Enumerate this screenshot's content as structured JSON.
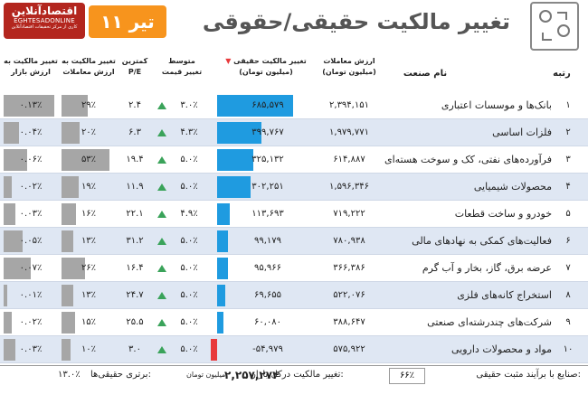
{
  "header": {
    "brand_title": "اقتصادآنلاین",
    "brand_subtitle": "EGHTESADONLINE",
    "brand_tagline": "کاری از مرکز تحقیقات اقتصادآنلاین",
    "date": "۱۱ تیر",
    "title": "تغییر مالکیت حقیقی/حقوقی"
  },
  "columns": {
    "rank": "رتبه",
    "industry": "نام صنعت",
    "trade_value": "ارزش معاملات",
    "trade_value_unit": "(میلیون تومان)",
    "ownership_change": "تغییر مالکیت حقیقی",
    "ownership_change_unit": "(میلیون تومان)",
    "avg_price_change_1": "متوسط",
    "avg_price_change_2": "تغییر قیمت",
    "pe_1": "کمترین",
    "pe_2": "P/E",
    "own_to_trade_1": "تغییر مالکیت به",
    "own_to_trade_2": "ارزش معاملات",
    "own_to_market_1": "تغییر مالکیت به",
    "own_to_market_2": "ارزش بازار"
  },
  "colors": {
    "blue_bar": "#1f9be0",
    "red_bar": "#e8393b",
    "gray_bar": "#a6a6a6",
    "up_arrow": "#3aa35a",
    "row_alt": "#dfe7f3"
  },
  "chart_data": {
    "type": "table",
    "rows": [
      {
        "rank": "۱",
        "industry": "بانک‌ها و موسسات اعتباری",
        "trade_value": "۲,۳۹۴,۱۵۱",
        "ownership_change": "۶۸۵,۵۷۹",
        "ownership_value": 685579,
        "avg_price_change": "۳.۰٪",
        "pe": "۲.۴",
        "own_to_trade": "۲۹٪",
        "own_to_trade_value": 29,
        "own_to_market": "۰.۱۳٪",
        "own_to_market_value": 0.13
      },
      {
        "rank": "۲",
        "industry": "فلزات اساسی",
        "trade_value": "۱,۹۷۹,۷۷۱",
        "ownership_change": "۳۹۹,۷۶۷",
        "ownership_value": 399767,
        "avg_price_change": "۴.۳٪",
        "pe": "۶.۳",
        "own_to_trade": "۲۰٪",
        "own_to_trade_value": 20,
        "own_to_market": "۰.۰۴٪",
        "own_to_market_value": 0.04
      },
      {
        "rank": "۳",
        "industry": "فرآورده‌های نفتی، کک و سوخت هسته‌ای",
        "trade_value": "۶۱۴,۸۸۷",
        "ownership_change": "۳۲۵,۱۳۲",
        "ownership_value": 325132,
        "avg_price_change": "۵.۰٪",
        "pe": "۱۹.۴",
        "own_to_trade": "۵۳٪",
        "own_to_trade_value": 53,
        "own_to_market": "۰.۰۶٪",
        "own_to_market_value": 0.06
      },
      {
        "rank": "۴",
        "industry": "محصولات شیمیایی",
        "trade_value": "۱,۵۹۶,۳۴۶",
        "ownership_change": "۳۰۲,۲۵۱",
        "ownership_value": 302251,
        "avg_price_change": "۵.۰٪",
        "pe": "۱۱.۹",
        "own_to_trade": "۱۹٪",
        "own_to_trade_value": 19,
        "own_to_market": "۰.۰۲٪",
        "own_to_market_value": 0.02
      },
      {
        "rank": "۵",
        "industry": "خودرو و ساخت قطعات",
        "trade_value": "۷۱۹,۲۲۲",
        "ownership_change": "۱۱۳,۶۹۳",
        "ownership_value": 113693,
        "avg_price_change": "۴.۹٪",
        "pe": "۲۲.۱",
        "own_to_trade": "۱۶٪",
        "own_to_trade_value": 16,
        "own_to_market": "۰.۰۳٪",
        "own_to_market_value": 0.03
      },
      {
        "rank": "۶",
        "industry": "فعالیت‌های کمکی به نهادهای مالی",
        "trade_value": "۷۸۰,۹۳۸",
        "ownership_change": "۹۹,۱۷۹",
        "ownership_value": 99179,
        "avg_price_change": "۵.۰٪",
        "pe": "۳۱.۲",
        "own_to_trade": "۱۳٪",
        "own_to_trade_value": 13,
        "own_to_market": "۰.۰۵٪",
        "own_to_market_value": 0.05
      },
      {
        "rank": "۷",
        "industry": "عرضه برق، گاز، بخار و آب گرم",
        "trade_value": "۳۶۶,۳۸۶",
        "ownership_change": "۹۵,۹۶۶",
        "ownership_value": 95966,
        "avg_price_change": "۵.۰٪",
        "pe": "۱۶.۴",
        "own_to_trade": "۲۶٪",
        "own_to_trade_value": 26,
        "own_to_market": "۰.۰۷٪",
        "own_to_market_value": 0.07
      },
      {
        "rank": "۸",
        "industry": "استخراج کانه‌های فلزی",
        "trade_value": "۵۲۲,۰۷۶",
        "ownership_change": "۶۹,۶۵۵",
        "ownership_value": 69655,
        "avg_price_change": "۵.۰٪",
        "pe": "۲۴.۷",
        "own_to_trade": "۱۳٪",
        "own_to_trade_value": 13,
        "own_to_market": "۰.۰۱٪",
        "own_to_market_value": 0.01
      },
      {
        "rank": "۹",
        "industry": "شرکت‌های چندرشته‌ای صنعتی",
        "trade_value": "۳۸۸,۶۴۷",
        "ownership_change": "۶۰,۰۸۰",
        "ownership_value": 60080,
        "avg_price_change": "۵.۰٪",
        "pe": "۲۵.۵",
        "own_to_trade": "۱۵٪",
        "own_to_trade_value": 15,
        "own_to_market": "۰.۰۲٪",
        "own_to_market_value": 0.02
      },
      {
        "rank": "۱۰",
        "industry": "مواد و محصولات دارویی",
        "trade_value": "۵۷۵,۹۲۲",
        "ownership_change": "-۵۴,۹۷۹",
        "ownership_value": -54979,
        "avg_price_change": "۵.۰٪",
        "pe": "۳.۰",
        "own_to_trade": "۱۰٪",
        "own_to_trade_value": 10,
        "own_to_market": "۰.۰۳٪",
        "own_to_market_value": 0.03
      }
    ]
  },
  "footer": {
    "positive_label": "صنایع با برآیند مثبت حقیقی:",
    "positive_value": "۶۶٪",
    "total_label": "تغییر مالکیت درکل بازار:",
    "total_value": "۲,۲۵۷,۲۷۴",
    "total_unit": "میلیون تومان",
    "advantage_label": "برتری حقیقی‌ها:",
    "advantage_value": "۱۳.۰٪"
  }
}
